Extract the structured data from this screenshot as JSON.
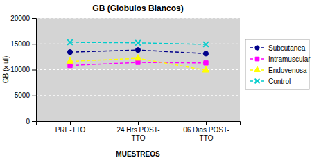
{
  "chart_data": {
    "type": "line",
    "title": "GB (Globulos Blancos)",
    "xlabel": "MUESTREOS",
    "ylabel": "GB (x ul)",
    "categories": [
      "PRE-TTO",
      "24 Hrs POST-\nTTO",
      "06 Dias POST-\nTTO"
    ],
    "series": [
      {
        "name": "Subcutanea",
        "color": "#00008B",
        "marker": "circle",
        "line_style": "dashed",
        "values": [
          13400,
          13800,
          13100
        ]
      },
      {
        "name": "Intramuscular",
        "color": "#FF00FF",
        "marker": "square",
        "line_style": "dashed",
        "values": [
          10800,
          11400,
          11300
        ]
      },
      {
        "name": "Endovenosa",
        "color": "#FFFF00",
        "marker": "triangle",
        "line_style": "dashed",
        "values": [
          11600,
          12200,
          9900
        ]
      },
      {
        "name": "Control",
        "color": "#00CCCC",
        "marker": "x",
        "line_style": "dashed",
        "values": [
          15300,
          15200,
          14900
        ]
      }
    ],
    "ylim": [
      0,
      20000
    ],
    "yticks": [
      0,
      5000,
      10000,
      15000,
      20000
    ],
    "grid": true,
    "legend": "right"
  }
}
